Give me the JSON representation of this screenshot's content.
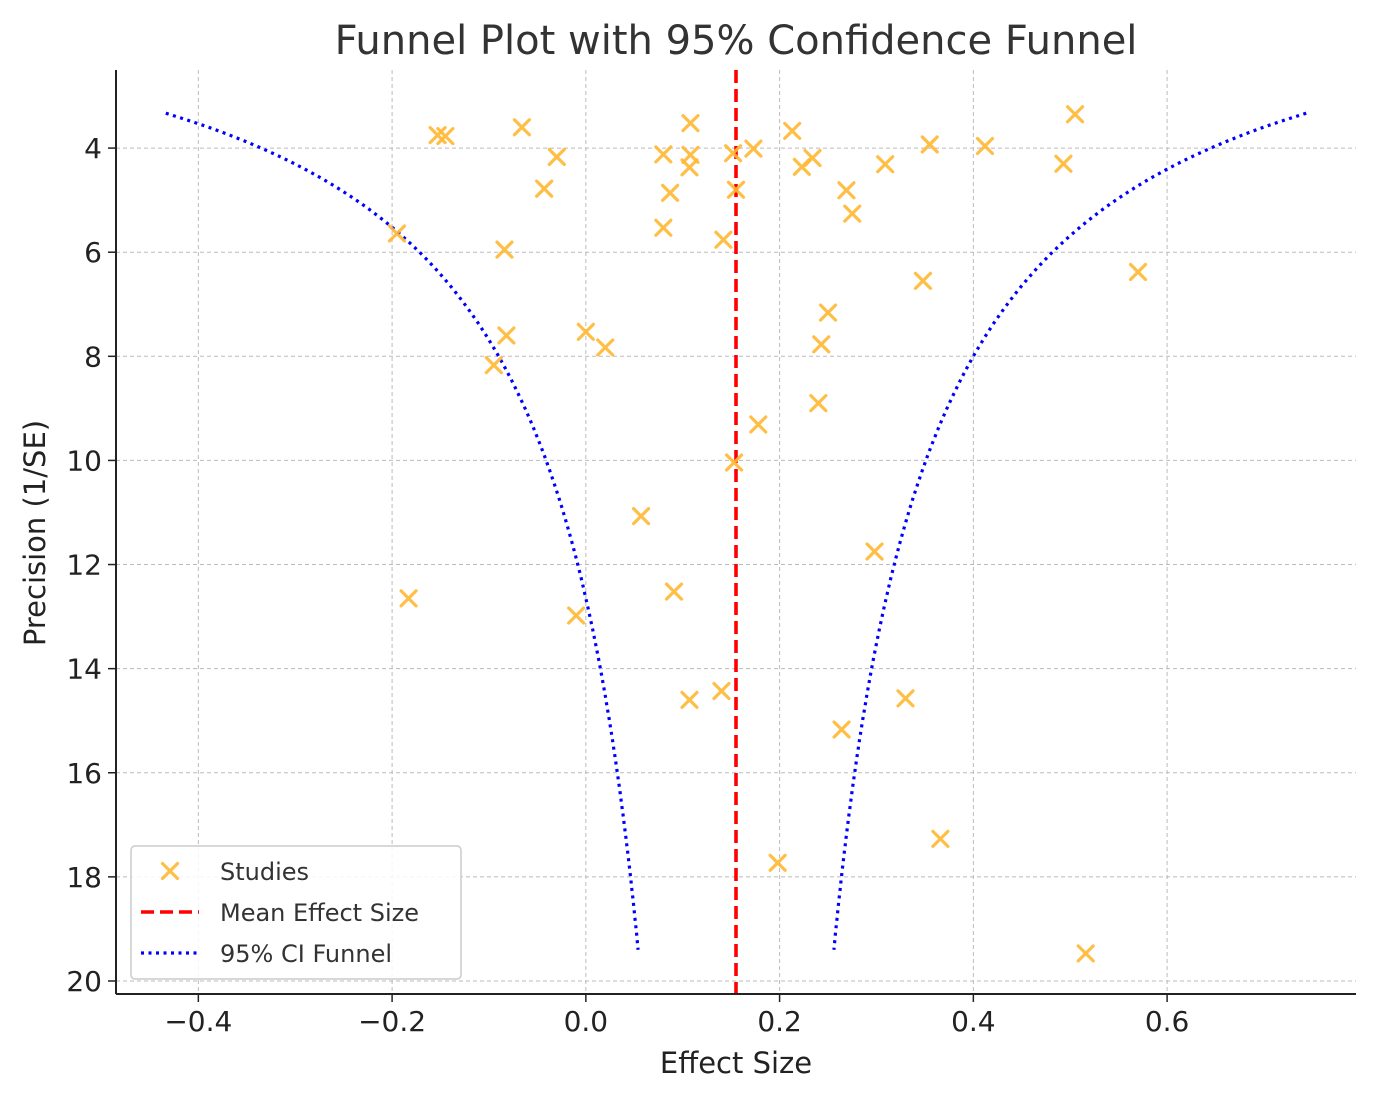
{
  "chart_data": {
    "type": "scatter",
    "title": "Funnel Plot with 95% Confidence Funnel",
    "xlabel": "Effect Size",
    "ylabel": "Precision (1/SE)",
    "xlim": [
      -0.485,
      0.795
    ],
    "ylim": [
      20.25,
      2.5
    ],
    "y_inverted": true,
    "grid": true,
    "xticks": [
      -0.4,
      -0.2,
      0.0,
      0.2,
      0.4,
      0.6
    ],
    "xtick_labels": [
      "−0.4",
      "−0.2",
      "0.0",
      "0.2",
      "0.4",
      "0.6"
    ],
    "yticks": [
      4,
      6,
      8,
      10,
      12,
      14,
      16,
      18,
      20
    ],
    "ytick_labels": [
      "4",
      "6",
      "8",
      "10",
      "12",
      "14",
      "16",
      "18",
      "20"
    ],
    "mean_effect": 0.155,
    "series": [
      {
        "name": "Studies",
        "marker": "x",
        "color": "#FFB833",
        "points": [
          {
            "x": -0.153,
            "y": 3.75
          },
          {
            "x": -0.145,
            "y": 3.77
          },
          {
            "x": -0.066,
            "y": 3.6
          },
          {
            "x": -0.03,
            "y": 4.17
          },
          {
            "x": -0.043,
            "y": 4.78
          },
          {
            "x": 0.08,
            "y": 4.12
          },
          {
            "x": 0.108,
            "y": 3.52
          },
          {
            "x": 0.108,
            "y": 4.13
          },
          {
            "x": 0.107,
            "y": 4.37
          },
          {
            "x": 0.152,
            "y": 4.1
          },
          {
            "x": 0.173,
            "y": 4.01
          },
          {
            "x": 0.213,
            "y": 3.67
          },
          {
            "x": 0.234,
            "y": 4.19
          },
          {
            "x": 0.223,
            "y": 4.36
          },
          {
            "x": 0.309,
            "y": 4.31
          },
          {
            "x": 0.355,
            "y": 3.93
          },
          {
            "x": 0.412,
            "y": 3.96
          },
          {
            "x": 0.505,
            "y": 3.35
          },
          {
            "x": 0.493,
            "y": 4.3
          },
          {
            "x": 0.087,
            "y": 4.86
          },
          {
            "x": 0.155,
            "y": 4.8
          },
          {
            "x": 0.269,
            "y": 4.81
          },
          {
            "x": 0.275,
            "y": 5.26
          },
          {
            "x": 0.08,
            "y": 5.53
          },
          {
            "x": 0.142,
            "y": 5.76
          },
          {
            "x": -0.195,
            "y": 5.64
          },
          {
            "x": -0.084,
            "y": 5.95
          },
          {
            "x": 0.348,
            "y": 6.55
          },
          {
            "x": 0.57,
            "y": 6.38
          },
          {
            "x": 0.25,
            "y": 7.16
          },
          {
            "x": 0.0,
            "y": 7.53
          },
          {
            "x": -0.082,
            "y": 7.6
          },
          {
            "x": 0.02,
            "y": 7.83
          },
          {
            "x": 0.243,
            "y": 7.77
          },
          {
            "x": -0.095,
            "y": 8.17
          },
          {
            "x": 0.24,
            "y": 8.9
          },
          {
            "x": 0.178,
            "y": 9.31
          },
          {
            "x": 0.153,
            "y": 10.04
          },
          {
            "x": 0.057,
            "y": 11.07
          },
          {
            "x": 0.298,
            "y": 11.75
          },
          {
            "x": -0.183,
            "y": 12.65
          },
          {
            "x": 0.091,
            "y": 12.52
          },
          {
            "x": -0.01,
            "y": 12.98
          },
          {
            "x": 0.14,
            "y": 14.43
          },
          {
            "x": 0.107,
            "y": 14.6
          },
          {
            "x": 0.33,
            "y": 14.57
          },
          {
            "x": 0.264,
            "y": 15.17
          },
          {
            "x": 0.366,
            "y": 17.27
          },
          {
            "x": 0.198,
            "y": 17.73
          },
          {
            "x": 0.516,
            "y": 19.47
          }
        ]
      },
      {
        "name": "Mean Effect Size",
        "style": "dashed",
        "color": "#FF0000"
      },
      {
        "name": "95% CI Funnel",
        "style": "dotted",
        "color": "#0000FF",
        "precision_range": [
          3.33,
          19.4
        ]
      }
    ],
    "legend": "lower-left"
  }
}
